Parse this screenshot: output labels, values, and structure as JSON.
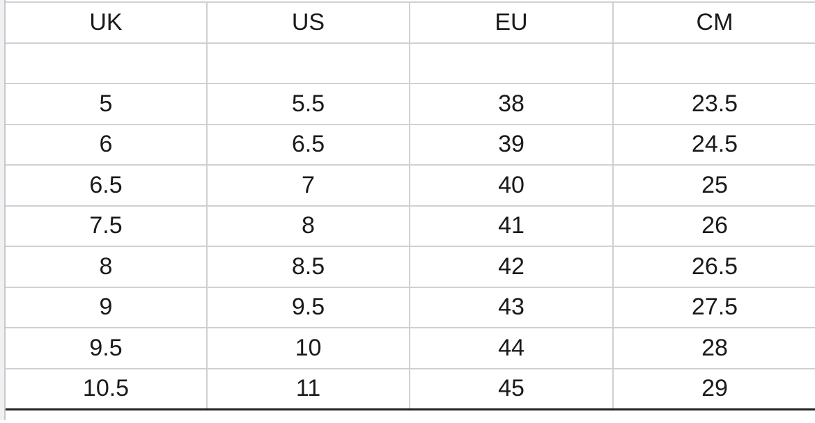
{
  "headers": [
    "UK",
    "US",
    "EU",
    "CM"
  ],
  "rows": [
    [
      "",
      "",
      "",
      ""
    ],
    [
      "5",
      "5.5",
      "38",
      "23.5"
    ],
    [
      "6",
      "6.5",
      "39",
      "24.5"
    ],
    [
      "6.5",
      "7",
      "40",
      "25"
    ],
    [
      "7.5",
      "8",
      "41",
      "26"
    ],
    [
      "8",
      "8.5",
      "42",
      "26.5"
    ],
    [
      "9",
      "9.5",
      "43",
      "27.5"
    ],
    [
      "9.5",
      "10",
      "44",
      "28"
    ],
    [
      "10.5",
      "11",
      "45",
      "29"
    ]
  ]
}
